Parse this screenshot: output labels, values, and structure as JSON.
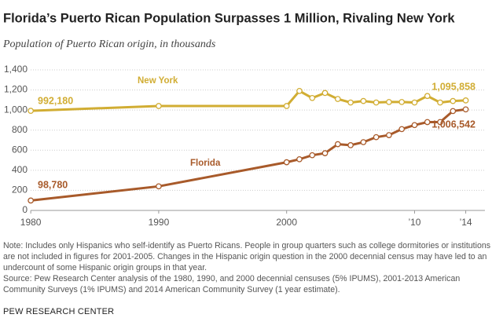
{
  "chart_data": {
    "type": "line",
    "title": "Florida’s Puerto Rican Population Surpasses 1 Million, Rivaling New York",
    "subtitle": "Population of Puerto Rican origin, in thousands",
    "x": [
      1980,
      1990,
      2000,
      2001,
      2002,
      2003,
      2004,
      2005,
      2006,
      2007,
      2008,
      2009,
      2010,
      2011,
      2012,
      2013,
      2014
    ],
    "series": [
      {
        "name": "New York",
        "color": "#d1ad33",
        "values": [
          992.18,
          1040,
          1040,
          1190,
          1120,
          1170,
          1110,
          1075,
          1090,
          1075,
          1080,
          1080,
          1075,
          1140,
          1075,
          1090,
          1095.858
        ],
        "value_labels": [
          "992,180",
          null,
          null,
          null,
          null,
          null,
          null,
          null,
          null,
          null,
          null,
          null,
          null,
          null,
          null,
          null,
          "1,095,858"
        ]
      },
      {
        "name": "Florida",
        "color": "#a85a2a",
        "values": [
          98.78,
          240,
          480,
          510,
          550,
          570,
          660,
          650,
          680,
          730,
          750,
          810,
          850,
          880,
          880,
          990,
          1006.542
        ],
        "value_labels": [
          "98,780",
          null,
          null,
          null,
          null,
          null,
          null,
          null,
          null,
          null,
          null,
          null,
          null,
          null,
          null,
          null,
          "1,006,542"
        ]
      }
    ],
    "xlim": [
      1979.5,
      2015.5
    ],
    "xticks": [
      1980,
      1990,
      2000,
      {
        "value": 2010,
        "label": "’10"
      },
      {
        "value": 2014,
        "label": "’14"
      }
    ],
    "ylim": [
      0,
      1400
    ],
    "yticks": [
      0,
      200,
      400,
      600,
      800,
      {
        "value": 1000,
        "label": "1,000"
      },
      {
        "value": 1200,
        "label": "1,200"
      },
      {
        "value": 1400,
        "label": "1,400"
      }
    ],
    "grid": true,
    "note": "Note: Includes only Hispanics who self-identify as Puerto Ricans. People in group quarters such as college dormitories or institutions are not included in figures for 2001-2005. Changes in the Hispanic origin question in the 2000 decennial census may have led to an undercount of some Hispanic origin groups in that year.",
    "source": "Source: Pew Research Center analysis of the 1980, 1990, and 2000 decennial censuses (5% IPUMS), 2001-2013 American Community Surveys (1% IPUMS) and 2014 American Community Survey (1 year estimate).",
    "footer": "PEW RESEARCH CENTER"
  }
}
